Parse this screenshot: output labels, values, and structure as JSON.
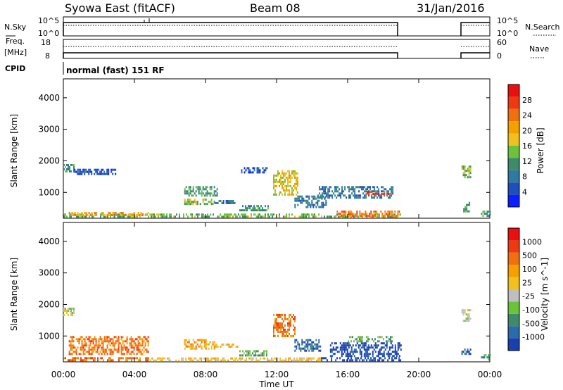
{
  "header": {
    "title": "Syowa East (fitACF)",
    "beam": "Beam 08",
    "date": "31/Jan/2016"
  },
  "top_panels": {
    "nsky_label": "N.Sky",
    "nsky_ticks": [
      "10^5",
      "10^0"
    ],
    "nsearch_label": "N.Search",
    "nsearch_ticks": [
      "10^5",
      "10^0"
    ],
    "freq_label": "Freq.",
    "freq_unit": "[MHz]",
    "freq_ticks": [
      "18",
      "8"
    ],
    "nave_label": "Nave",
    "nave_ticks": [
      "60",
      "0"
    ],
    "cpid_label": "CPID",
    "cpid_text": "normal (fast) 151 RF",
    "data_gap_hours": [
      19.0,
      22.4
    ]
  },
  "chart_data": [
    {
      "type": "heatmap",
      "title": "",
      "xlabel": "",
      "ylabel": "Slant Range [km]",
      "xlim": [
        0,
        24
      ],
      "ylim": [
        180,
        4600
      ],
      "yticks": [
        1000,
        2000,
        3000,
        4000
      ],
      "colorbar": {
        "label": "Power [dB]",
        "ticks": [
          "4",
          "8",
          "12",
          "16",
          "20",
          "24",
          "28"
        ],
        "colors": [
          "#0a1fff",
          "#1f4fb8",
          "#2e7aa0",
          "#3f8a6a",
          "#6cc23a",
          "#f0c020",
          "#f5a000",
          "#f07010",
          "#ee3a10",
          "#e81010"
        ]
      },
      "regions": [
        {
          "x": [
            0.0,
            19.0
          ],
          "y": [
            220,
            330
          ],
          "level": 4
        },
        {
          "x": [
            0.3,
            4.8
          ],
          "y": [
            280,
            380
          ],
          "level": 6
        },
        {
          "x": [
            15.3,
            19.0
          ],
          "y": [
            260,
            420
          ],
          "level": 7
        },
        {
          "x": [
            0.0,
            0.6
          ],
          "y": [
            1650,
            1900
          ],
          "level": 3
        },
        {
          "x": [
            0.6,
            3.0
          ],
          "y": [
            1600,
            1750
          ],
          "level": 1
        },
        {
          "x": [
            6.8,
            8.5
          ],
          "y": [
            600,
            800
          ],
          "level": 4
        },
        {
          "x": [
            6.8,
            8.7
          ],
          "y": [
            900,
            1200
          ],
          "level": 3
        },
        {
          "x": [
            8.5,
            9.8
          ],
          "y": [
            650,
            760
          ],
          "level": 2
        },
        {
          "x": [
            9.9,
            11.5
          ],
          "y": [
            400,
            600
          ],
          "level": 3
        },
        {
          "x": [
            10.0,
            11.5
          ],
          "y": [
            1650,
            1800
          ],
          "level": 1
        },
        {
          "x": [
            11.8,
            13.2
          ],
          "y": [
            900,
            1700
          ],
          "level": 5
        },
        {
          "x": [
            13.0,
            14.8
          ],
          "y": [
            500,
            900
          ],
          "level": 2
        },
        {
          "x": [
            14.3,
            18.5
          ],
          "y": [
            800,
            1200
          ],
          "level": 2
        },
        {
          "x": [
            17.0,
            18.5
          ],
          "y": [
            950,
            1050
          ],
          "level": 8
        },
        {
          "x": [
            22.4,
            22.9
          ],
          "y": [
            1500,
            1850
          ],
          "level": 4
        },
        {
          "x": [
            22.5,
            22.9
          ],
          "y": [
            400,
            700
          ],
          "level": 3
        },
        {
          "x": [
            23.5,
            24.0
          ],
          "y": [
            220,
            420
          ],
          "level": 3
        }
      ]
    },
    {
      "type": "heatmap",
      "title": "",
      "xlabel": "Time UT",
      "ylabel": "Slant Range [km]",
      "xlim": [
        0,
        24
      ],
      "ylim": [
        180,
        4600
      ],
      "xticks": [
        "00:00",
        "04:00",
        "08:00",
        "12:00",
        "16:00",
        "20:00",
        "00:00"
      ],
      "yticks": [
        1000,
        2000,
        3000,
        4000
      ],
      "colorbar": {
        "label": "Velocity [m s^-1]",
        "ticks": [
          "1000",
          "500",
          "100",
          "25",
          "-25",
          "-100",
          "-500",
          "-1000"
        ],
        "colors": [
          "#1a3fb0",
          "#2b6ca8",
          "#3f8a6a",
          "#6cc23a",
          "#bfbfbf",
          "#f0c020",
          "#f5a000",
          "#f07010",
          "#ee3a10",
          "#e81010"
        ]
      },
      "regions": [
        {
          "x": [
            0.0,
            4.8
          ],
          "y": [
            220,
            330
          ],
          "level": 7
        },
        {
          "x": [
            4.8,
            14.5
          ],
          "y": [
            220,
            320
          ],
          "level": 5
        },
        {
          "x": [
            14.5,
            19.0
          ],
          "y": [
            220,
            330
          ],
          "level": 0
        },
        {
          "x": [
            0.3,
            4.8
          ],
          "y": [
            400,
            1000
          ],
          "level": 7
        },
        {
          "x": [
            0.0,
            0.6
          ],
          "y": [
            1650,
            1900
          ],
          "level": 4
        },
        {
          "x": [
            6.8,
            8.5
          ],
          "y": [
            600,
            900
          ],
          "level": 6
        },
        {
          "x": [
            8.5,
            9.8
          ],
          "y": [
            650,
            760
          ],
          "level": 5
        },
        {
          "x": [
            9.9,
            11.5
          ],
          "y": [
            380,
            550
          ],
          "level": 3
        },
        {
          "x": [
            11.8,
            13.0
          ],
          "y": [
            1000,
            1700
          ],
          "level": 7
        },
        {
          "x": [
            13.0,
            14.5
          ],
          "y": [
            550,
            900
          ],
          "level": 1
        },
        {
          "x": [
            15.0,
            19.0
          ],
          "y": [
            350,
            800
          ],
          "level": 0
        },
        {
          "x": [
            16.0,
            18.5
          ],
          "y": [
            800,
            1000
          ],
          "level": 3
        },
        {
          "x": [
            22.4,
            22.9
          ],
          "y": [
            1500,
            1850
          ],
          "level": 4
        },
        {
          "x": [
            22.4,
            22.9
          ],
          "y": [
            400,
            600
          ],
          "level": 1
        },
        {
          "x": [
            23.5,
            24.0
          ],
          "y": [
            220,
            420
          ],
          "level": 2
        }
      ]
    }
  ]
}
